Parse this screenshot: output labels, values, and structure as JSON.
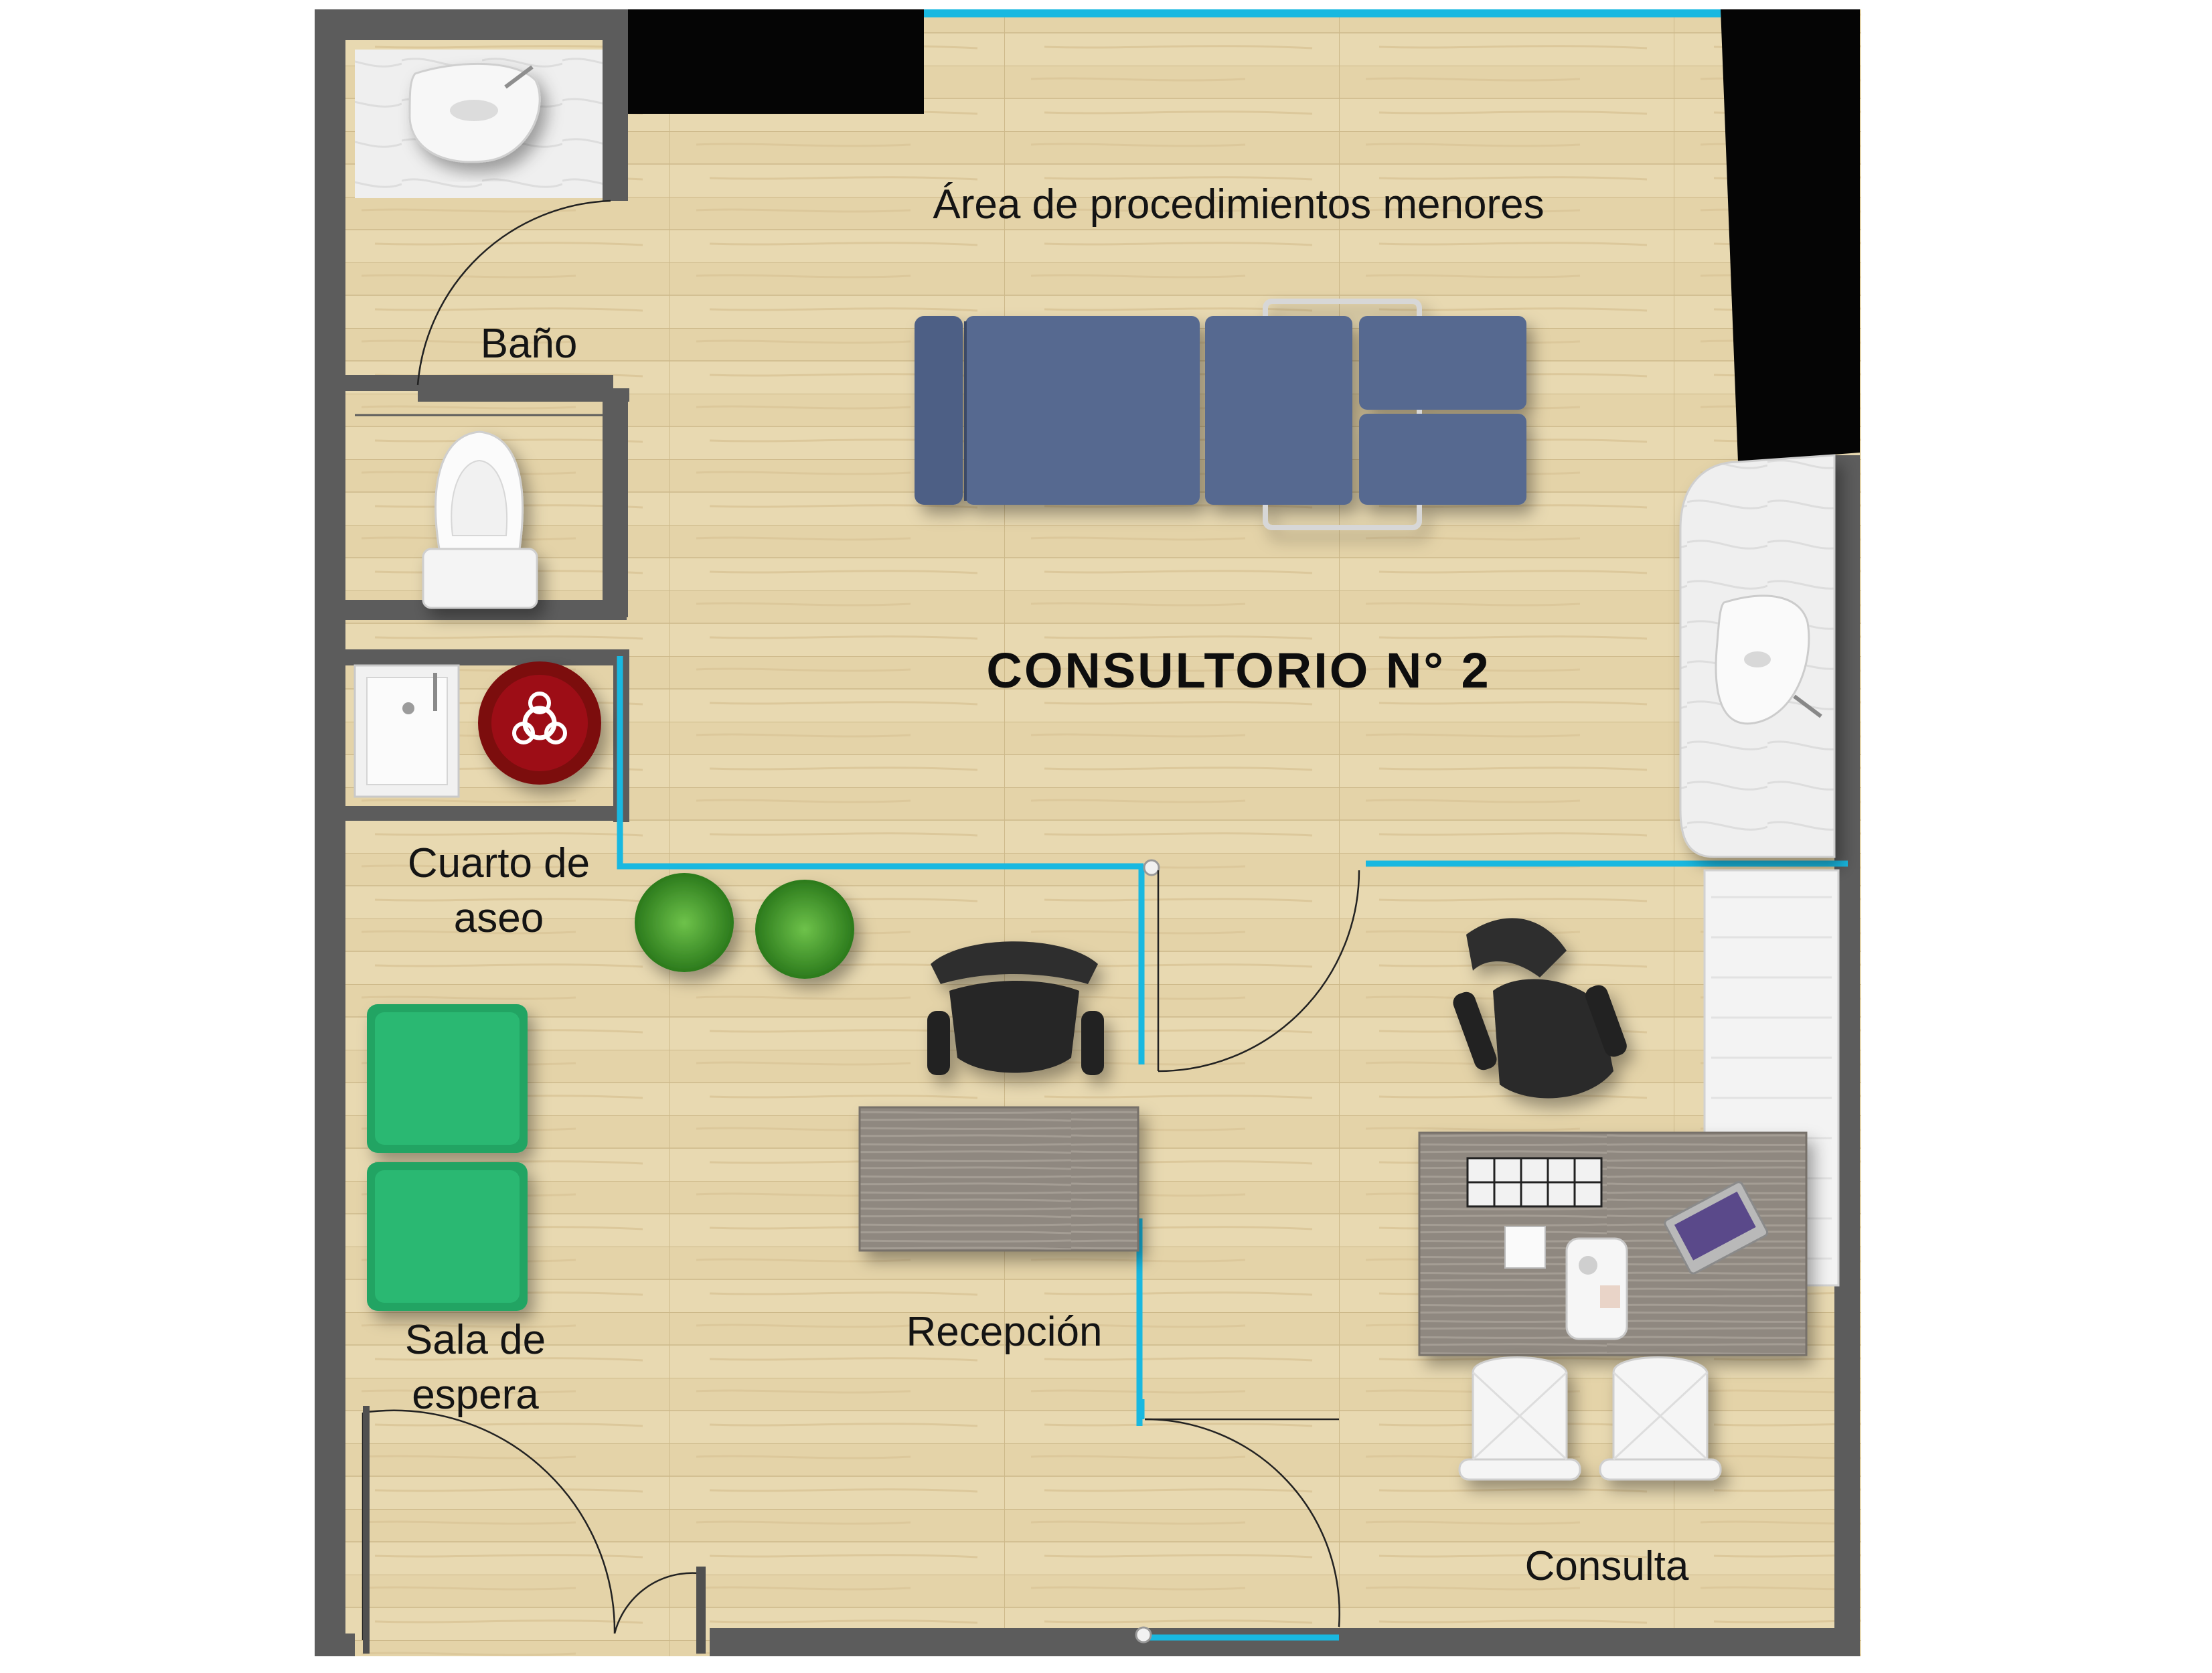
{
  "plan": {
    "title": "CONSULTORIO N° 2",
    "rooms": {
      "procedures": "Área de procedimientos menores",
      "bathroom": "Baño",
      "cleaning_line1": "Cuarto de",
      "cleaning_line2": "aseo",
      "waiting_line1": "Sala de",
      "waiting_line2": "espera",
      "reception": "Recepción",
      "consultation": "Consulta"
    }
  },
  "colors": {
    "floor": "#e6d6ad",
    "wall": "#5c5c5c",
    "glass_partition": "#19b8e0",
    "exam_table": "#4d5f85",
    "waiting_seats": "#22a464",
    "biohazard_bin": "#8a0d14",
    "plants": "#3f9a2c",
    "chairs": "#2d2d2d",
    "countertop": "#efefef",
    "desk": "#8e877e",
    "black_blocks": "#050505"
  }
}
